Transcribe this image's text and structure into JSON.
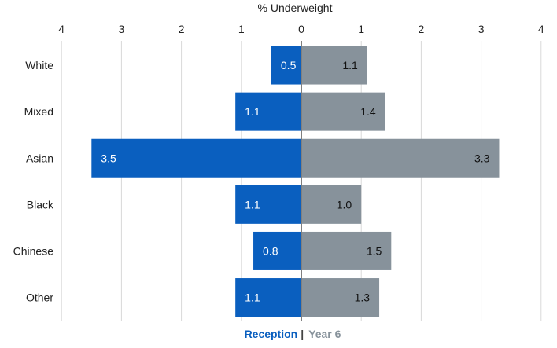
{
  "chart_data": {
    "type": "bar",
    "orientation": "horizontal-diverging",
    "title": "% Underweight",
    "categories": [
      "White",
      "Mixed",
      "Asian",
      "Black",
      "Chinese",
      "Other"
    ],
    "series": [
      {
        "name": "Reception",
        "direction": "left",
        "color": "#0a5fbf",
        "values": [
          0.5,
          1.1,
          3.5,
          1.1,
          0.8,
          1.1
        ],
        "labels": [
          "0.5",
          "1.1",
          "3.5",
          "1.1",
          "0.8",
          "1.1"
        ]
      },
      {
        "name": "Year 6",
        "direction": "right",
        "color": "#87929b",
        "values": [
          1.1,
          1.4,
          3.3,
          1.0,
          1.5,
          1.3
        ],
        "labels": [
          "1.1",
          "1.4",
          "3.3",
          "1.0",
          "1.5",
          "1.3"
        ]
      }
    ],
    "xlim": [
      -4,
      4
    ],
    "xticks": [
      -4,
      -3,
      -2,
      -1,
      0,
      1,
      2,
      3,
      4
    ],
    "xtick_labels": [
      "4",
      "3",
      "2",
      "1",
      "0",
      "1",
      "2",
      "3",
      "4"
    ],
    "legend": {
      "placement": "bottom-center",
      "separator": "|"
    },
    "grid": true
  }
}
